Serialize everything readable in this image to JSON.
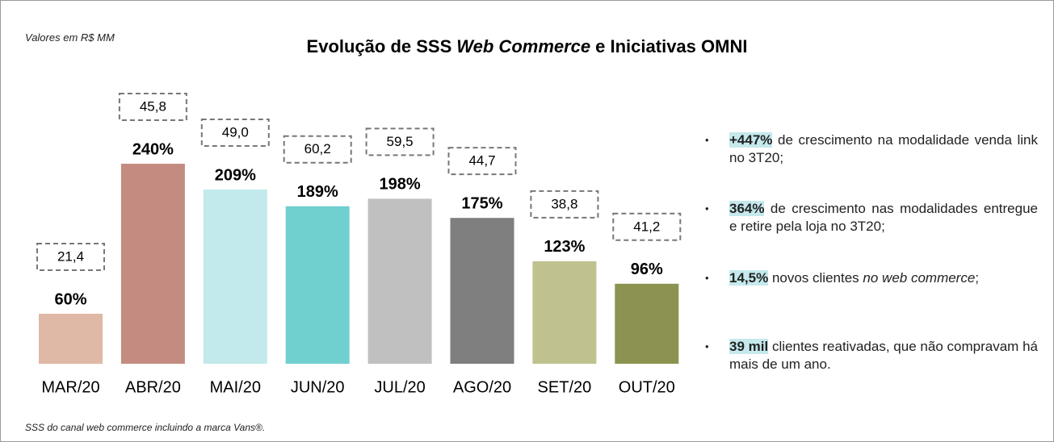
{
  "chart_data": {
    "type": "bar",
    "title": {
      "prefix": "Evolução de SSS",
      "emphasis": "Web Commerce",
      "suffix": "e Iniciativas OMNI"
    },
    "subtitle": "Valores em R$ MM",
    "footnote": "SSS do canal web commerce incluindo a marca Vans®.",
    "categories": [
      "MAR/20",
      "ABR/20",
      "MAI/20",
      "JUN/20",
      "JUL/20",
      "AGO/20",
      "SET/20",
      "OUT/20"
    ],
    "values": [
      60,
      240,
      209,
      189,
      198,
      175,
      123,
      96
    ],
    "value_labels": [
      "60%",
      "240%",
      "209%",
      "189%",
      "198%",
      "175%",
      "123%",
      "96%"
    ],
    "colors": [
      "#dfb8a6",
      "#c48c80",
      "#c2e9eb",
      "#70cfcf",
      "#c0c0c0",
      "#7f7f7f",
      "#bfc28f",
      "#8c9350"
    ],
    "boxed_values": [
      21.4,
      45.8,
      49.0,
      60.2,
      59.5,
      44.7,
      38.8,
      41.2
    ],
    "boxed_value_labels": [
      "21,4",
      "45,8",
      "49,0",
      "60,2",
      "59,5",
      "44,7",
      "38,8",
      "41,2"
    ],
    "ylim": [
      0,
      240
    ]
  },
  "bullets": [
    {
      "highlight": "+447%",
      "text": "de crescimento na modalidade venda link no 3T20;"
    },
    {
      "highlight": "364%",
      "text": "de crescimento nas modalidades entregue e retire pela loja no 3T20;"
    },
    {
      "highlight": "14,5%",
      "text": "novos clientes",
      "emphasis": "no web commerce",
      "end": ";"
    },
    {
      "highlight": "39 mil",
      "text": "clientes reativadas, que não compravam há mais de um ano."
    }
  ]
}
